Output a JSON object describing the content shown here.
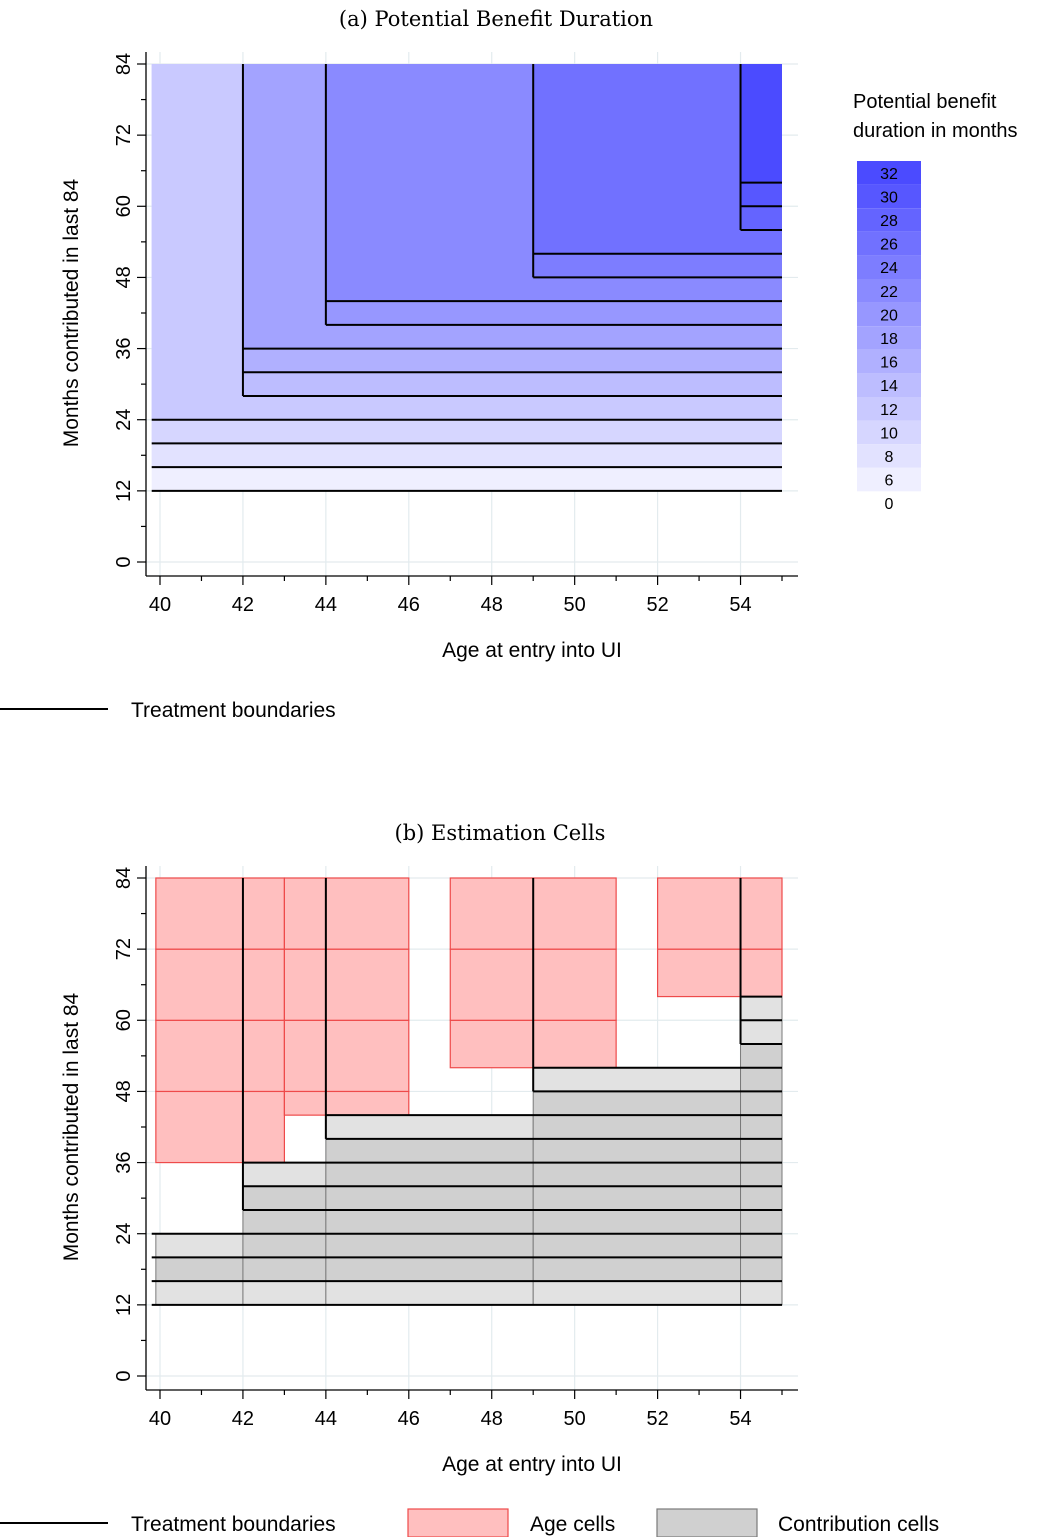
{
  "chart_data": [
    {
      "type": "heatmap",
      "title": "(a) Potential Benefit Duration",
      "xlabel": "Age at entry into UI",
      "ylabel": "Months contributed in last 84",
      "xlim": [
        39.7,
        55.5
      ],
      "ylim": [
        -2,
        85
      ],
      "xticks": [
        40,
        42,
        44,
        46,
        48,
        50,
        52,
        54
      ],
      "yticks": [
        0,
        12,
        24,
        36,
        48,
        60,
        72,
        84
      ],
      "grid": true,
      "scale": {
        "title_line1": "Potential benefit",
        "title_line2": "duration in months",
        "labels": [
          "32",
          "30",
          "28",
          "26",
          "24",
          "22",
          "20",
          "18",
          "16",
          "14",
          "12",
          "10",
          "8",
          "6",
          "0"
        ],
        "colors": [
          "#4b4bff",
          "#5757ff",
          "#6464ff",
          "#7171ff",
          "#7d7dff",
          "#8a8aff",
          "#9797ff",
          "#a3a3ff",
          "#b0b0ff",
          "#bdbdff",
          "#c9c9ff",
          "#d6d6ff",
          "#e2e2ff",
          "#efefff",
          "#ffffff"
        ]
      },
      "regions": [
        {
          "x": [
            39.8,
            55
          ],
          "y": [
            12,
            84
          ],
          "value": 6
        },
        {
          "x": [
            39.8,
            55
          ],
          "y": [
            16,
            84
          ],
          "value": 8
        },
        {
          "x": [
            39.8,
            55
          ],
          "y": [
            20,
            84
          ],
          "value": 10
        },
        {
          "x": [
            39.8,
            55
          ],
          "y": [
            24,
            84
          ],
          "value": 12
        },
        {
          "x": [
            42,
            55
          ],
          "y": [
            28,
            84
          ],
          "value": 14
        },
        {
          "x": [
            42,
            55
          ],
          "y": [
            32,
            84
          ],
          "value": 16
        },
        {
          "x": [
            42,
            55
          ],
          "y": [
            36,
            84
          ],
          "value": 18
        },
        {
          "x": [
            44,
            55
          ],
          "y": [
            40,
            84
          ],
          "value": 20
        },
        {
          "x": [
            44,
            55
          ],
          "y": [
            44,
            84
          ],
          "value": 22
        },
        {
          "x": [
            49,
            55
          ],
          "y": [
            48,
            84
          ],
          "value": 24
        },
        {
          "x": [
            49,
            55
          ],
          "y": [
            52,
            84
          ],
          "value": 26
        },
        {
          "x": [
            54,
            55
          ],
          "y": [
            56,
            84
          ],
          "value": 28
        },
        {
          "x": [
            54,
            55
          ],
          "y": [
            60,
            84
          ],
          "value": 30
        },
        {
          "x": [
            54,
            55
          ],
          "y": [
            64,
            84
          ],
          "value": 32
        }
      ],
      "treatment_boundaries": {
        "horizontal": [
          {
            "y": 12,
            "x": [
              39.8,
              55
            ]
          },
          {
            "y": 16,
            "x": [
              39.8,
              55
            ]
          },
          {
            "y": 20,
            "x": [
              39.8,
              55
            ]
          },
          {
            "y": 24,
            "x": [
              39.8,
              55
            ]
          },
          {
            "y": 28,
            "x": [
              42,
              55
            ]
          },
          {
            "y": 32,
            "x": [
              42,
              55
            ]
          },
          {
            "y": 36,
            "x": [
              42,
              55
            ]
          },
          {
            "y": 40,
            "x": [
              44,
              55
            ]
          },
          {
            "y": 44,
            "x": [
              44,
              55
            ]
          },
          {
            "y": 48,
            "x": [
              49,
              55
            ]
          },
          {
            "y": 52,
            "x": [
              49,
              55
            ]
          },
          {
            "y": 56,
            "x": [
              54,
              55
            ]
          },
          {
            "y": 60,
            "x": [
              54,
              55
            ]
          },
          {
            "y": 64,
            "x": [
              54,
              55
            ]
          }
        ],
        "vertical": [
          {
            "x": 42,
            "y": [
              28,
              84
            ]
          },
          {
            "x": 44,
            "y": [
              40,
              84
            ]
          },
          {
            "x": 49,
            "y": [
              48,
              84
            ]
          },
          {
            "x": 54,
            "y": [
              56,
              84
            ]
          }
        ]
      },
      "legend": [
        {
          "label": "Treatment boundaries"
        }
      ]
    },
    {
      "type": "heatmap",
      "title": "(b) Estimation Cells",
      "xlabel": "Age at entry into UI",
      "ylabel": "Months contributed in last 84",
      "xlim": [
        39.7,
        55.5
      ],
      "ylim": [
        -2,
        85
      ],
      "xticks": [
        40,
        42,
        44,
        46,
        48,
        50,
        52,
        54
      ],
      "yticks": [
        0,
        12,
        24,
        36,
        48,
        60,
        72,
        84
      ],
      "grid": true,
      "age_cells": [
        {
          "x": [
            39.9,
            42
          ],
          "y": [
            36,
            48
          ]
        },
        {
          "x": [
            39.9,
            42
          ],
          "y": [
            48,
            60
          ]
        },
        {
          "x": [
            39.9,
            42
          ],
          "y": [
            60,
            72
          ]
        },
        {
          "x": [
            39.9,
            42
          ],
          "y": [
            72,
            84
          ]
        },
        {
          "x": [
            42,
            43
          ],
          "y": [
            36,
            48
          ]
        },
        {
          "x": [
            42,
            43
          ],
          "y": [
            48,
            60
          ]
        },
        {
          "x": [
            42,
            43
          ],
          "y": [
            60,
            72
          ]
        },
        {
          "x": [
            42,
            43
          ],
          "y": [
            72,
            84
          ]
        },
        {
          "x": [
            43,
            44
          ],
          "y": [
            44,
            48
          ]
        },
        {
          "x": [
            43,
            44
          ],
          "y": [
            48,
            60
          ]
        },
        {
          "x": [
            43,
            44
          ],
          "y": [
            60,
            72
          ]
        },
        {
          "x": [
            43,
            44
          ],
          "y": [
            72,
            84
          ]
        },
        {
          "x": [
            44,
            46
          ],
          "y": [
            44,
            48
          ]
        },
        {
          "x": [
            44,
            46
          ],
          "y": [
            48,
            60
          ]
        },
        {
          "x": [
            44,
            46
          ],
          "y": [
            60,
            72
          ]
        },
        {
          "x": [
            44,
            46
          ],
          "y": [
            72,
            84
          ]
        },
        {
          "x": [
            47,
            49
          ],
          "y": [
            52,
            60
          ]
        },
        {
          "x": [
            47,
            49
          ],
          "y": [
            60,
            72
          ]
        },
        {
          "x": [
            47,
            49
          ],
          "y": [
            72,
            84
          ]
        },
        {
          "x": [
            49,
            51
          ],
          "y": [
            52,
            60
          ]
        },
        {
          "x": [
            49,
            51
          ],
          "y": [
            60,
            72
          ]
        },
        {
          "x": [
            49,
            51
          ],
          "y": [
            72,
            84
          ]
        },
        {
          "x": [
            52,
            54
          ],
          "y": [
            64,
            72
          ]
        },
        {
          "x": [
            52,
            54
          ],
          "y": [
            72,
            84
          ]
        },
        {
          "x": [
            54,
            55
          ],
          "y": [
            64,
            72
          ]
        },
        {
          "x": [
            54,
            55
          ],
          "y": [
            72,
            84
          ]
        }
      ],
      "contribution_cells": [
        {
          "x": [
            39.9,
            42
          ],
          "y": [
            12,
            16
          ]
        },
        {
          "x": [
            39.9,
            42
          ],
          "y": [
            16,
            20
          ]
        },
        {
          "x": [
            39.9,
            42
          ],
          "y": [
            20,
            24
          ]
        },
        {
          "x": [
            42,
            44
          ],
          "y": [
            12,
            16
          ]
        },
        {
          "x": [
            42,
            44
          ],
          "y": [
            16,
            20
          ]
        },
        {
          "x": [
            42,
            44
          ],
          "y": [
            20,
            24
          ]
        },
        {
          "x": [
            42,
            44
          ],
          "y": [
            24,
            28
          ]
        },
        {
          "x": [
            42,
            44
          ],
          "y": [
            28,
            32
          ]
        },
        {
          "x": [
            42,
            44
          ],
          "y": [
            32,
            36
          ]
        },
        {
          "x": [
            44,
            49
          ],
          "y": [
            12,
            16
          ]
        },
        {
          "x": [
            44,
            49
          ],
          "y": [
            16,
            20
          ]
        },
        {
          "x": [
            44,
            49
          ],
          "y": [
            20,
            24
          ]
        },
        {
          "x": [
            44,
            49
          ],
          "y": [
            24,
            28
          ]
        },
        {
          "x": [
            44,
            49
          ],
          "y": [
            28,
            32
          ]
        },
        {
          "x": [
            44,
            49
          ],
          "y": [
            32,
            36
          ]
        },
        {
          "x": [
            44,
            49
          ],
          "y": [
            36,
            40
          ]
        },
        {
          "x": [
            44,
            49
          ],
          "y": [
            40,
            44
          ]
        },
        {
          "x": [
            49,
            54
          ],
          "y": [
            12,
            16
          ]
        },
        {
          "x": [
            49,
            54
          ],
          "y": [
            16,
            20
          ]
        },
        {
          "x": [
            49,
            54
          ],
          "y": [
            20,
            24
          ]
        },
        {
          "x": [
            49,
            54
          ],
          "y": [
            24,
            28
          ]
        },
        {
          "x": [
            49,
            54
          ],
          "y": [
            28,
            32
          ]
        },
        {
          "x": [
            49,
            54
          ],
          "y": [
            32,
            36
          ]
        },
        {
          "x": [
            49,
            54
          ],
          "y": [
            36,
            40
          ]
        },
        {
          "x": [
            49,
            54
          ],
          "y": [
            40,
            44
          ]
        },
        {
          "x": [
            49,
            54
          ],
          "y": [
            44,
            48
          ]
        },
        {
          "x": [
            49,
            54
          ],
          "y": [
            48,
            52
          ]
        },
        {
          "x": [
            54,
            55
          ],
          "y": [
            12,
            16
          ]
        },
        {
          "x": [
            54,
            55
          ],
          "y": [
            16,
            20
          ]
        },
        {
          "x": [
            54,
            55
          ],
          "y": [
            20,
            24
          ]
        },
        {
          "x": [
            54,
            55
          ],
          "y": [
            24,
            28
          ]
        },
        {
          "x": [
            54,
            55
          ],
          "y": [
            28,
            32
          ]
        },
        {
          "x": [
            54,
            55
          ],
          "y": [
            32,
            36
          ]
        },
        {
          "x": [
            54,
            55
          ],
          "y": [
            36,
            40
          ]
        },
        {
          "x": [
            54,
            55
          ],
          "y": [
            40,
            44
          ]
        },
        {
          "x": [
            54,
            55
          ],
          "y": [
            44,
            48
          ]
        },
        {
          "x": [
            54,
            55
          ],
          "y": [
            48,
            52
          ]
        },
        {
          "x": [
            54,
            55
          ],
          "y": [
            52,
            56
          ]
        },
        {
          "x": [
            54,
            55
          ],
          "y": [
            56,
            60
          ]
        },
        {
          "x": [
            54,
            55
          ],
          "y": [
            60,
            64
          ]
        }
      ],
      "treatment_boundaries": {
        "horizontal": [
          {
            "y": 12,
            "x": [
              39.8,
              55
            ]
          },
          {
            "y": 16,
            "x": [
              39.8,
              55
            ]
          },
          {
            "y": 20,
            "x": [
              39.8,
              55
            ]
          },
          {
            "y": 24,
            "x": [
              39.8,
              55
            ]
          },
          {
            "y": 28,
            "x": [
              42,
              55
            ]
          },
          {
            "y": 32,
            "x": [
              42,
              55
            ]
          },
          {
            "y": 36,
            "x": [
              42,
              55
            ]
          },
          {
            "y": 40,
            "x": [
              44,
              55
            ]
          },
          {
            "y": 44,
            "x": [
              44,
              55
            ]
          },
          {
            "y": 48,
            "x": [
              49,
              55
            ]
          },
          {
            "y": 52,
            "x": [
              49,
              55
            ]
          },
          {
            "y": 56,
            "x": [
              54,
              55
            ]
          },
          {
            "y": 60,
            "x": [
              54,
              55
            ]
          },
          {
            "y": 64,
            "x": [
              54,
              55
            ]
          }
        ],
        "vertical": [
          {
            "x": 42,
            "y": [
              28,
              84
            ]
          },
          {
            "x": 44,
            "y": [
              40,
              84
            ]
          },
          {
            "x": 49,
            "y": [
              48,
              84
            ]
          },
          {
            "x": 54,
            "y": [
              56,
              84
            ]
          }
        ]
      },
      "legend": [
        {
          "label": "Treatment boundaries"
        },
        {
          "label": "Age cells"
        },
        {
          "label": "Contribution cells"
        }
      ]
    }
  ],
  "colors": {
    "age_fill": "#ffbfbf",
    "age_stroke": "#ee4a4a",
    "contrib_fill": "#d0d0d0",
    "contrib_fill_light": "#e2e2e2",
    "contrib_stroke": "#7a7a7a",
    "grid": "#e3ebee",
    "boundary": "#000000"
  }
}
